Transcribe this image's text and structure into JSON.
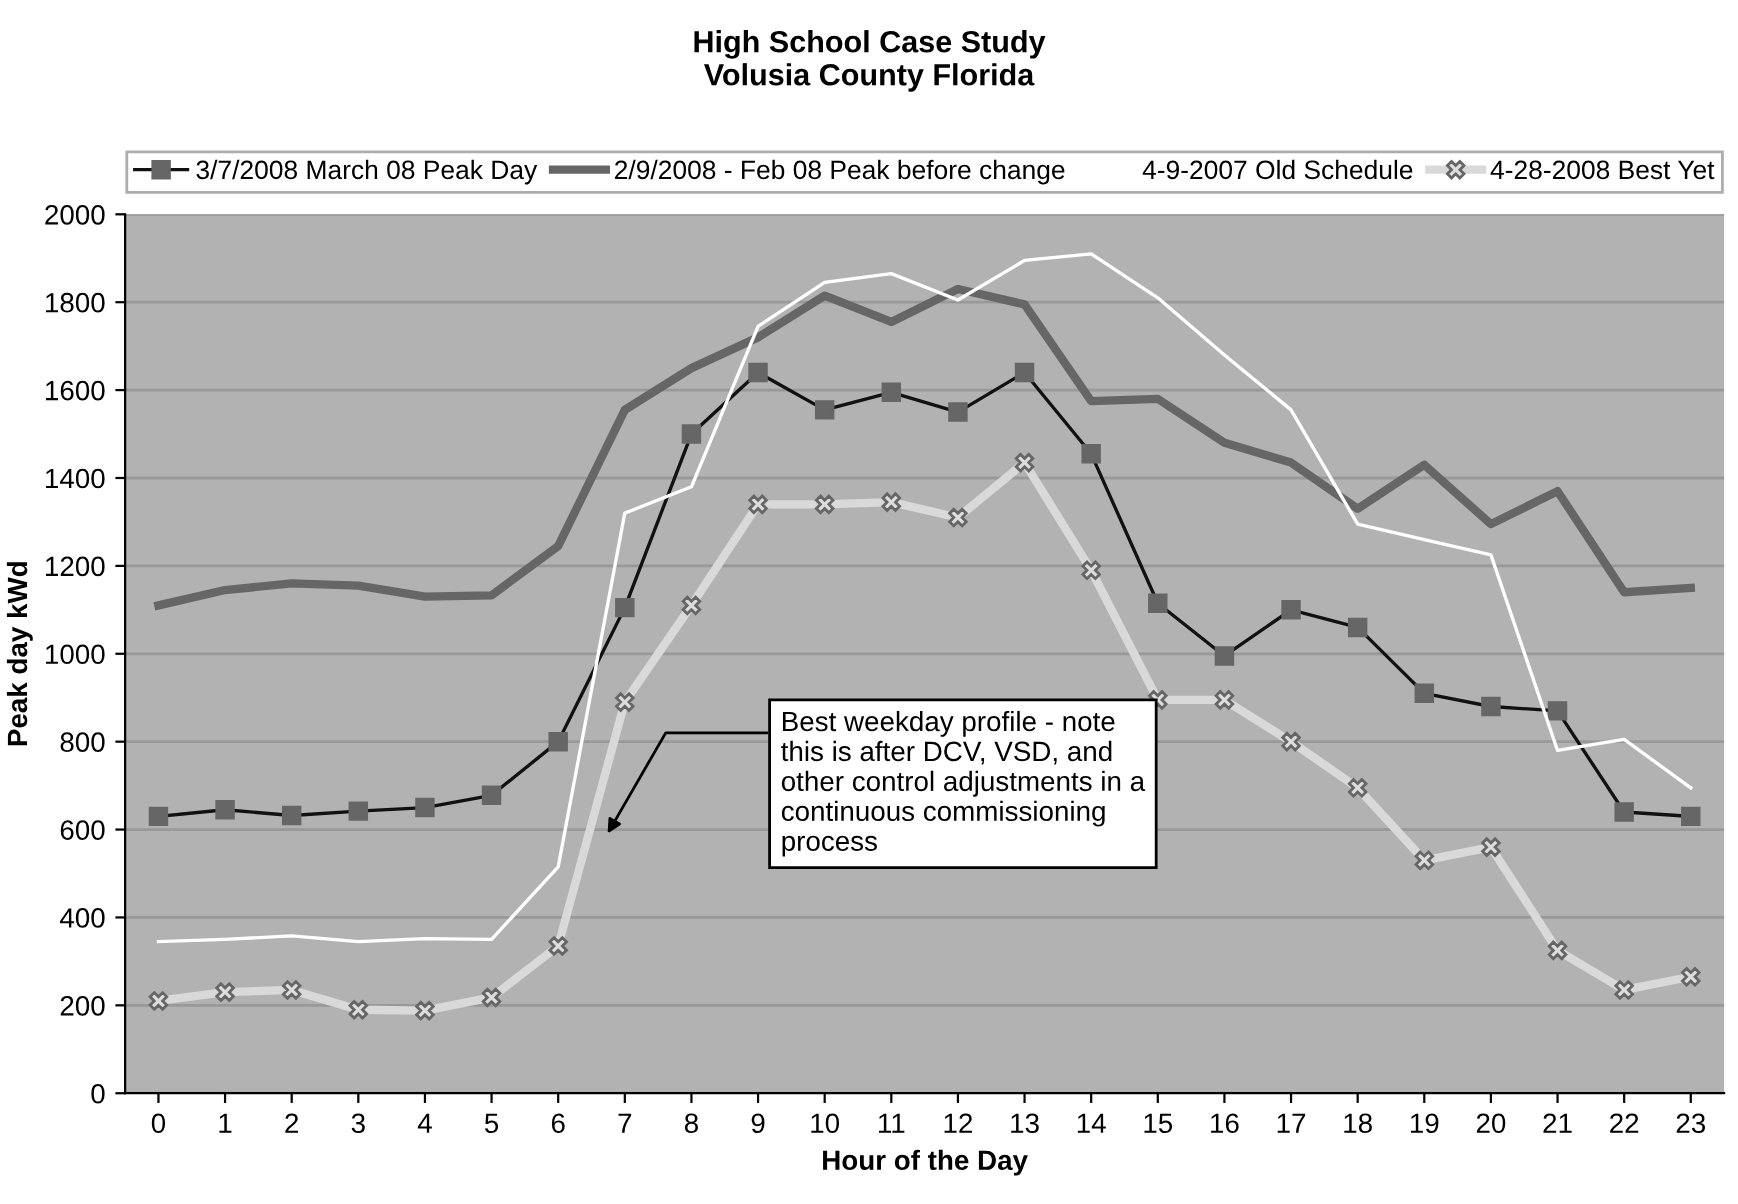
{
  "chart_data": {
    "type": "line",
    "title": "High School Case Study\nVolusia County Florida",
    "xlabel": "Hour of the Day",
    "ylabel": "Peak day kWd",
    "x": [
      0,
      1,
      2,
      3,
      4,
      5,
      6,
      7,
      8,
      9,
      10,
      11,
      12,
      13,
      14,
      15,
      16,
      17,
      18,
      19,
      20,
      21,
      22,
      23
    ],
    "series": [
      {
        "name": "3/7/2008 March 08 Peak Day",
        "color": "#111111",
        "marker": "square",
        "values": [
          630,
          645,
          632,
          642,
          650,
          678,
          800,
          1105,
          1500,
          1640,
          1555,
          1595,
          1550,
          1640,
          1455,
          1115,
          995,
          1100,
          1060,
          910,
          880,
          870,
          640,
          630
        ]
      },
      {
        "name": "2/9/2008 - Feb 08 Peak before change",
        "color": "#666666",
        "marker": "none",
        "values": [
          1110,
          1145,
          1160,
          1155,
          1130,
          1133,
          1245,
          1555,
          1650,
          1720,
          1815,
          1755,
          1830,
          1795,
          1575,
          1580,
          1480,
          1435,
          1330,
          1430,
          1295,
          1370,
          1140,
          1150
        ]
      },
      {
        "name": "4-9-2007 Old Schedule",
        "color": "#ffffff",
        "marker": "none",
        "values": [
          345,
          350,
          358,
          345,
          352,
          350,
          515,
          1320,
          1380,
          1745,
          1845,
          1865,
          1805,
          1895,
          1910,
          1810,
          1680,
          1555,
          1295,
          1260,
          1225,
          780,
          805,
          695
        ]
      },
      {
        "name": "4-28-2008 Best Yet",
        "color": "#d9d9d9",
        "marker": "cross",
        "values": [
          210,
          230,
          235,
          190,
          188,
          218,
          335,
          890,
          1110,
          1340,
          1340,
          1345,
          1310,
          1435,
          1190,
          895,
          895,
          800,
          695,
          530,
          560,
          325,
          235,
          265
        ]
      }
    ],
    "xlim": [
      -0.5,
      23.5
    ],
    "xticks": [
      0,
      1,
      2,
      3,
      4,
      5,
      6,
      7,
      8,
      9,
      10,
      11,
      12,
      13,
      14,
      15,
      16,
      17,
      18,
      19,
      20,
      21,
      22,
      23
    ],
    "ylim": [
      0,
      2000
    ],
    "yticks": [
      0,
      200,
      400,
      600,
      800,
      1000,
      1200,
      1400,
      1600,
      1800,
      2000
    ],
    "grid": "y",
    "legend": "top",
    "annotations": [
      "Best weekday profile - note\nthis is after DCV, VSD, and\nother control adjustments in a\ncontinuous commissioning\nprocess"
    ]
  }
}
